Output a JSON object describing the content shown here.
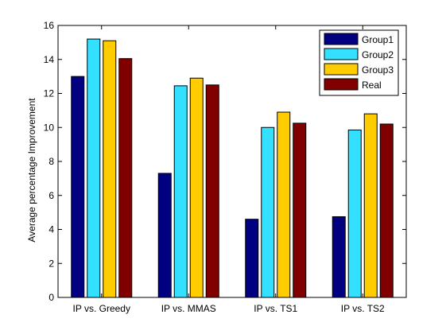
{
  "chart_data": {
    "type": "bar",
    "categories": [
      "IP vs. Greedy",
      "IP vs. MMAS",
      "IP vs. TS1",
      "IP vs. TS2"
    ],
    "series": [
      {
        "name": "Group1",
        "values": [
          13.0,
          7.3,
          4.6,
          4.75
        ],
        "color": "#000080"
      },
      {
        "name": "Group2",
        "values": [
          15.2,
          12.45,
          10.0,
          9.85
        ],
        "color": "#33e0ff"
      },
      {
        "name": "Group3",
        "values": [
          15.1,
          12.9,
          10.9,
          10.8
        ],
        "color": "#ffcc00"
      },
      {
        "name": "Real",
        "values": [
          14.05,
          12.5,
          10.25,
          10.2
        ],
        "color": "#800000"
      }
    ],
    "xlabel": "",
    "ylabel": "Average percentage Improvement",
    "ylim": [
      0,
      16
    ],
    "yticks": [
      0,
      2,
      4,
      6,
      8,
      10,
      12,
      14,
      16
    ],
    "grid": false,
    "legend": "top-right"
  }
}
